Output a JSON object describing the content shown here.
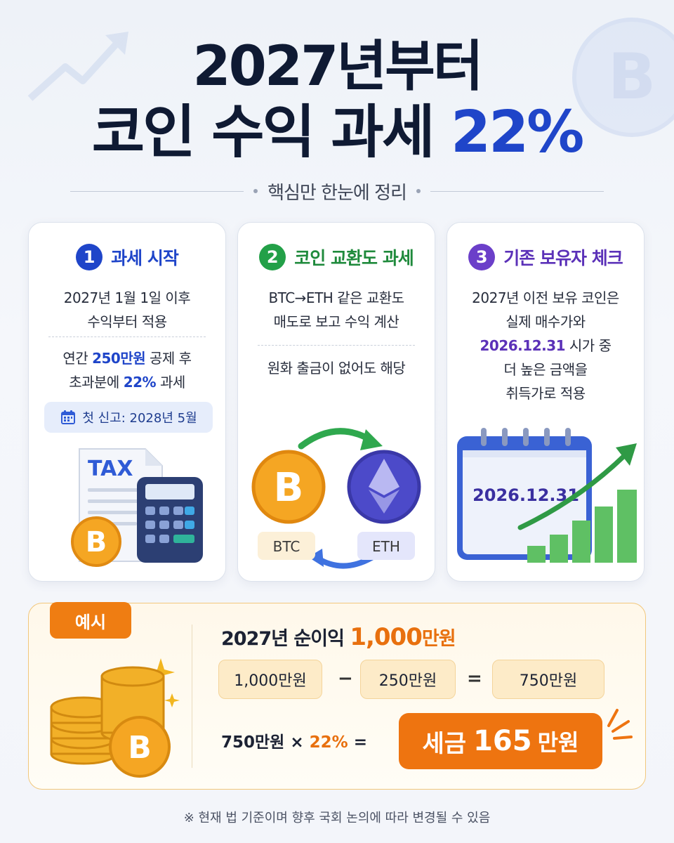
{
  "title": {
    "line1": "2027년부터",
    "line2_prefix": "코인 수익 과세",
    "line2_accent": "22%"
  },
  "subtitle": "핵심만 한눈에 정리",
  "cards": [
    {
      "number": "1",
      "title": "과세 시작",
      "text1_a": "2027년 1월 1일 이후",
      "text1_b": "수익부터 적용",
      "text2_a": "연간",
      "text2_highlight": "250만원",
      "text2_b": "공제 후",
      "text3_a": "초과분에",
      "text3_highlight": "22%",
      "text3_b": "과세",
      "pill": "첫 신고: 2028년 5월",
      "illustration_label": "TAX"
    },
    {
      "number": "2",
      "title": "코인 교환도 과세",
      "text1_a": "BTC→ETH 같은 교환도",
      "text1_b": "매도로 보고 수익 계산",
      "text2": "원화 출금이 없어도 해당",
      "btc_label": "BTC",
      "eth_label": "ETH"
    },
    {
      "number": "3",
      "title": "기존 보유자 체크",
      "text1": "2027년 이전 보유 코인은",
      "text2": "실제 매수가와",
      "text3_highlight": "2026.12.31",
      "text3_b": "시가 중",
      "text4": "더 높은 금액을",
      "text5": "취득가로 적용",
      "calendar_date": "2026.12.31"
    }
  ],
  "example": {
    "badge": "예시",
    "line1_a": "2027년 순이익",
    "line1_num": "1,000",
    "line1_unit": "만원",
    "box1": "1,000만원",
    "minus": "−",
    "box2": "250만원",
    "equals": "=",
    "box3": "750만원",
    "line3_a": "750만원 ×",
    "line3_pct": "22%",
    "line3_eq": "=",
    "tax_a": "세금",
    "tax_b": "165",
    "tax_c": "만원"
  },
  "footnote": "※ 현재 법 기준이며 향후 국회 논의에 따라 변경될 수 있음",
  "colors": {
    "blue": "#1f45c9",
    "green": "#23a048",
    "purple": "#6b3fc9",
    "orange": "#ee7410",
    "coin": "#f5a623"
  }
}
